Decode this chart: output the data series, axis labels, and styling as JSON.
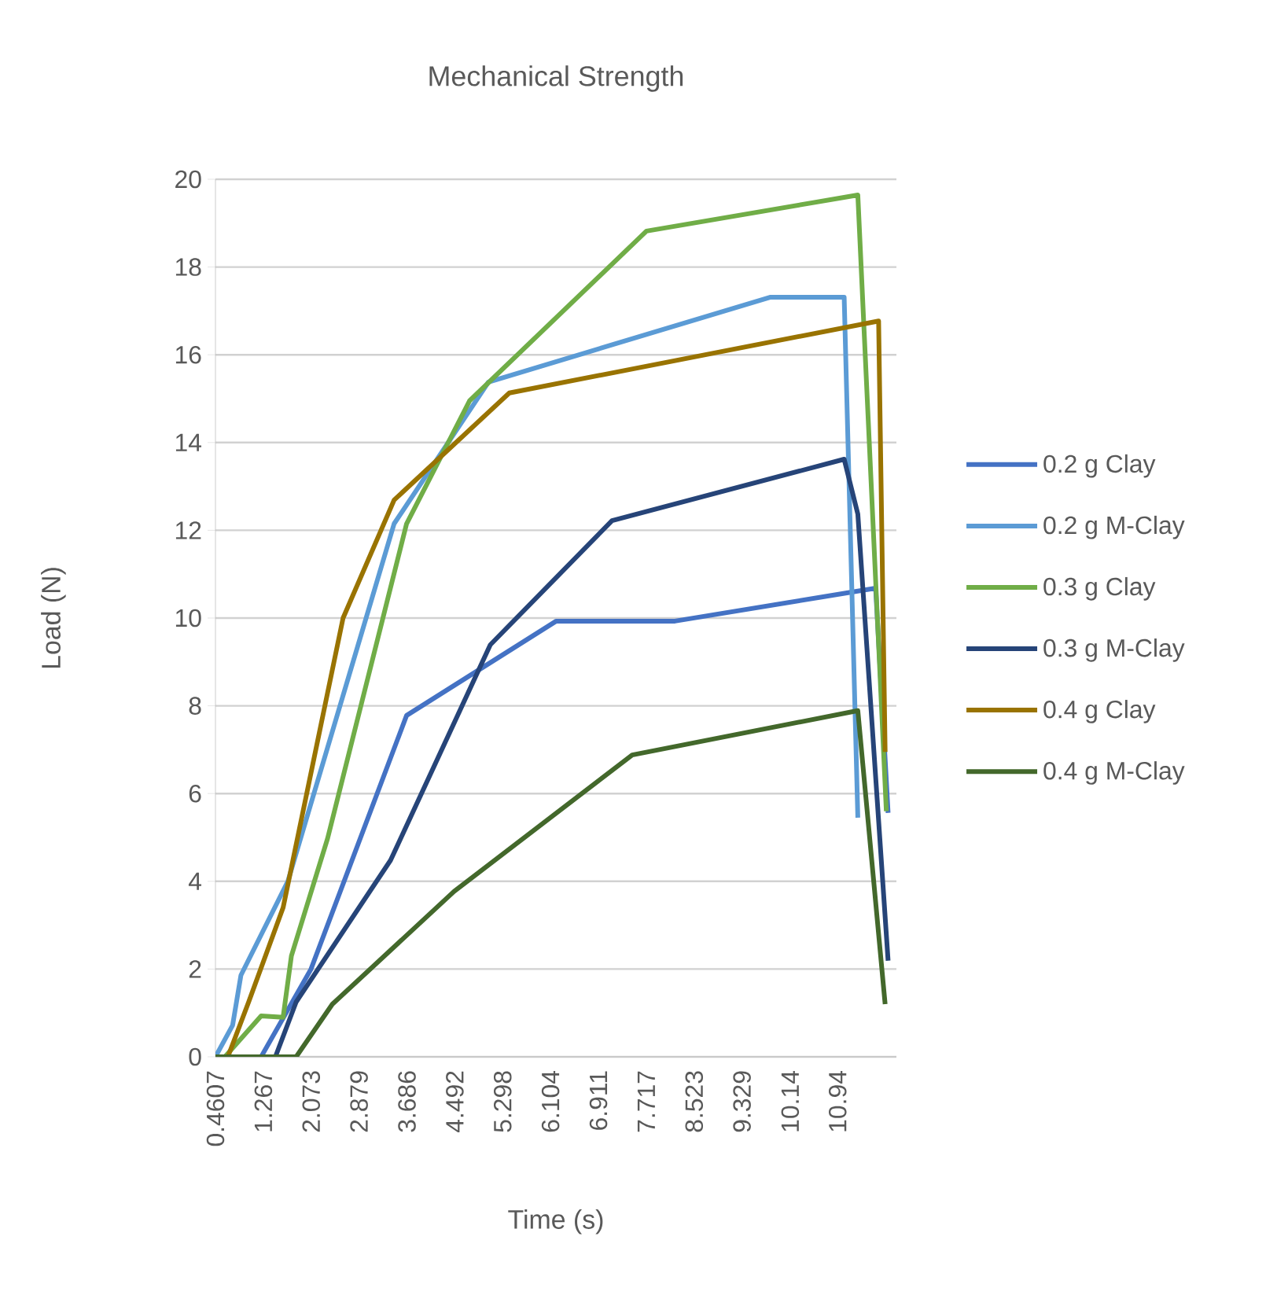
{
  "chart_data": {
    "type": "line",
    "title": "Mechanical Strength",
    "xlabel": "Time (s)",
    "ylabel": "Load (N)",
    "xlim": [
      0.4607,
      11.93
    ],
    "ylim": [
      0,
      20
    ],
    "xticks": [
      0.4607,
      1.267,
      2.073,
      2.879,
      3.686,
      4.492,
      5.298,
      6.104,
      6.911,
      7.717,
      8.523,
      9.329,
      10.14,
      10.94
    ],
    "yticks": [
      0,
      2,
      4,
      6,
      8,
      10,
      12,
      14,
      16,
      18,
      20
    ],
    "grid": "y",
    "legend": "right",
    "line_style": "solid",
    "series": [
      {
        "name": "0.2 g Clay",
        "color": "#4472c4",
        "x": [
          0.4607,
          1.23,
          2.07,
          3.68,
          6.2,
          8.2,
          11.58,
          11.79
        ],
        "values": [
          0,
          0,
          2.0,
          7.78,
          9.93,
          9.93,
          10.68,
          5.56
        ]
      },
      {
        "name": "0.2 g M-Clay",
        "color": "#5b9bd5",
        "x": [
          0.4607,
          0.75,
          0.89,
          1.68,
          3.47,
          5.06,
          9.8,
          11.05,
          11.28
        ],
        "values": [
          0,
          0.72,
          1.86,
          4.0,
          12.15,
          15.38,
          17.31,
          17.31,
          5.45
        ]
      },
      {
        "name": "0.3 g Clay",
        "color": "#70ad47",
        "x": [
          0.4607,
          0.62,
          1.23,
          1.6,
          1.74,
          2.35,
          3.68,
          4.74,
          7.72,
          11.28,
          11.76
        ],
        "values": [
          0,
          0,
          0.93,
          0.9,
          2.3,
          4.98,
          12.15,
          14.95,
          18.82,
          19.64,
          5.6
        ]
      },
      {
        "name": "0.3 g M-Clay",
        "color": "#264478",
        "x": [
          0.4607,
          1.47,
          1.82,
          3.41,
          5.09,
          7.14,
          11.05,
          11.28,
          11.79
        ],
        "values": [
          0,
          0,
          1.25,
          4.48,
          9.39,
          12.22,
          13.62,
          12.37,
          2.19
        ]
      },
      {
        "name": "0.4 g Clay",
        "color": "#997300",
        "x": [
          0.4607,
          0.67,
          1.02,
          1.6,
          2.61,
          3.47,
          5.41,
          11.63,
          11.74
        ],
        "values": [
          0,
          0,
          1.25,
          3.4,
          10.0,
          12.69,
          15.13,
          16.77,
          6.95
        ]
      },
      {
        "name": "0.4 g M-Clay",
        "color": "#43682b",
        "x": [
          0.4607,
          1.82,
          2.43,
          4.48,
          7.48,
          11.28,
          11.74
        ],
        "values": [
          0,
          0,
          1.2,
          3.77,
          6.88,
          7.89,
          1.2
        ]
      }
    ]
  }
}
